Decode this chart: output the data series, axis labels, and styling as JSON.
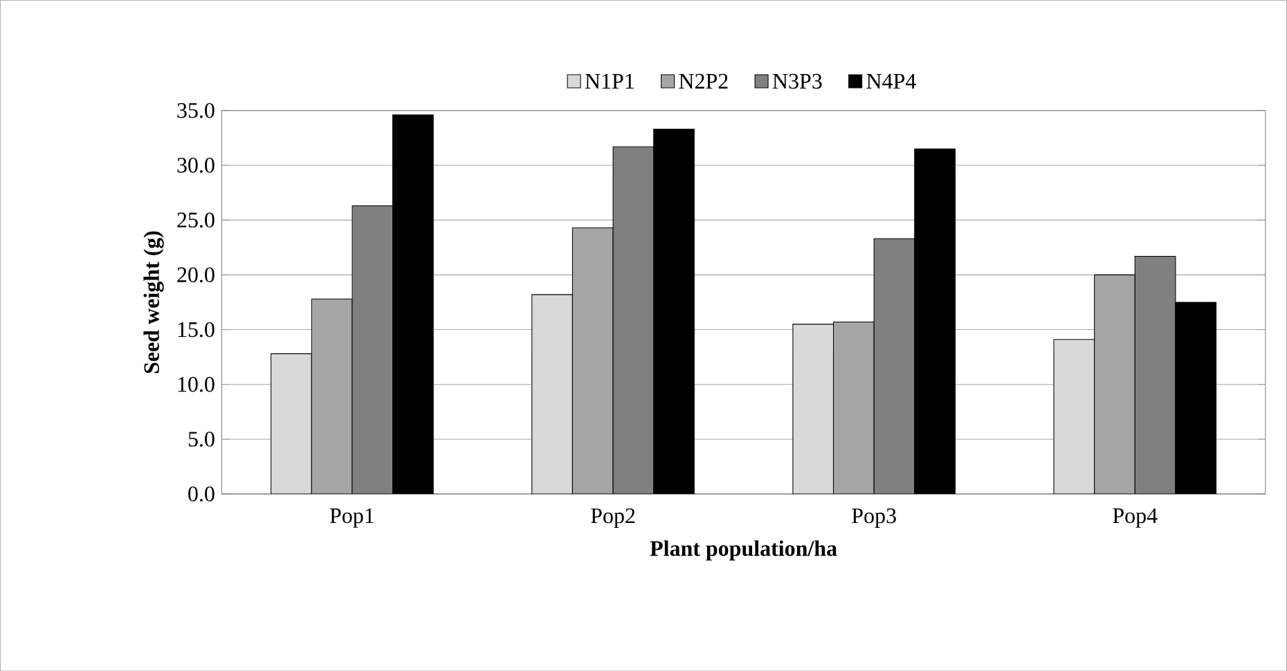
{
  "chart_data": {
    "type": "bar",
    "xlabel": "Plant population/ha",
    "ylabel": "Seed weight (g)",
    "categories": [
      "Pop1",
      "Pop2",
      "Pop3",
      "Pop4"
    ],
    "series": [
      {
        "name": "N1P1",
        "color": "#d9d9d9",
        "values": [
          12.8,
          18.2,
          15.5,
          14.1
        ]
      },
      {
        "name": "N2P2",
        "color": "#a6a6a6",
        "values": [
          17.8,
          24.3,
          15.7,
          20.0
        ]
      },
      {
        "name": "N3P3",
        "color": "#808080",
        "values": [
          26.3,
          31.7,
          23.3,
          21.7
        ]
      },
      {
        "name": "N4P4",
        "color": "#000000",
        "values": [
          34.6,
          33.3,
          31.5,
          17.5
        ]
      }
    ],
    "ylim": [
      0,
      35
    ],
    "yticks": [
      {
        "value": 0,
        "label": "0.0"
      },
      {
        "value": 5,
        "label": "5.0"
      },
      {
        "value": 10,
        "label": "10.0"
      },
      {
        "value": 15,
        "label": "15.0"
      },
      {
        "value": 20,
        "label": "20.0"
      },
      {
        "value": 25,
        "label": "25.0"
      },
      {
        "value": 30,
        "label": "30.0"
      },
      {
        "value": 35,
        "label": "35.0"
      }
    ],
    "grid": "y",
    "legend": "top"
  }
}
